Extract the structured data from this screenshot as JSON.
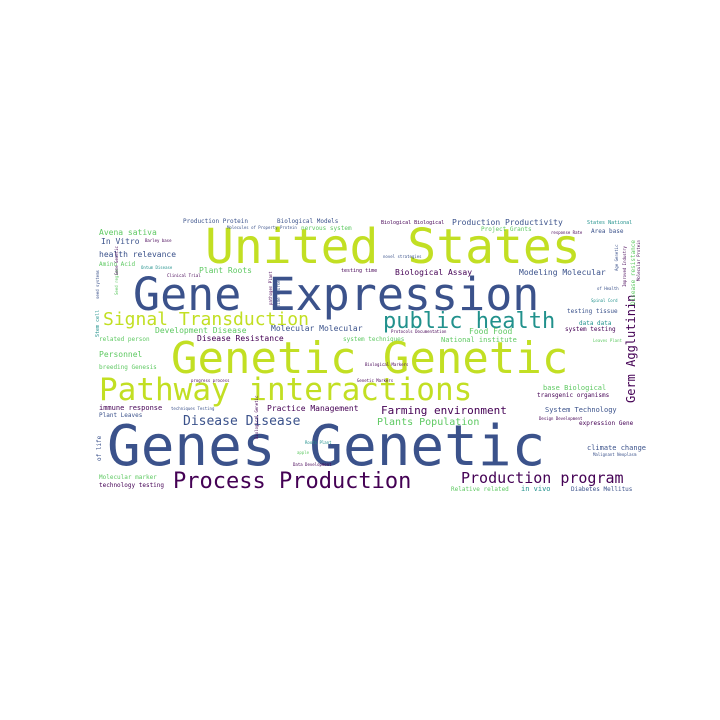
{
  "palette": {
    "dark_purple": "#440154",
    "indigo": "#3b528b",
    "teal": "#21918c",
    "green": "#5ec962",
    "yellow_green": "#c2df23"
  },
  "words": {
    "united_states": "United States",
    "gene_expression": "Gene Expression",
    "signal_transduction": "Signal Transduction",
    "public_health": "public health",
    "genetic_genetic": "Genetic Genetic",
    "pathway_interactions": "Pathway interactions",
    "genes_genetic": "Genes Genetic",
    "process_production": "Process Production",
    "production_program": "Production program",
    "disease_disease": "Disease Disease",
    "farming_environment": "Farming environment",
    "plants_population": "Plants Population",
    "germ_agglutinin": "Germ Agglutinin",
    "production_productivity": "Production Productivity",
    "biological_assay": "Biological Assay",
    "modeling_molecular": "Modeling Molecular",
    "avena_sativa": "Avena sativa",
    "in_vitro": "In Vitro",
    "health_relevance": "health relevance",
    "personnel": "Personnel",
    "disease_resistance": "Disease Resistance",
    "molecular_molecular": "Molecular Molecular",
    "development_disease": "Development Disease",
    "plant_roots": "Plant Roots",
    "food_food": "Food Food",
    "practice_management": "Practice Management",
    "system_technology": "System Technology",
    "base_biological": "base Biological",
    "immune_response": "immune response",
    "national_institute": "National institute",
    "climate_change": "climate change",
    "in_vivo": "in vivo",
    "diabetes_mellitus": "Diabetes Mellitus",
    "relative_related": "Relative related",
    "technology_testing": "technology testing",
    "molecular_marker": "Molecular marker",
    "plant_leaves": "Plant Leaves",
    "breeding_genesis": "breeding Genesis",
    "related_person": "related person",
    "amino_acid": "Amino Acid",
    "production_protein": "Production Protein",
    "biological_models": "Biological Models",
    "nervous_system": "nervous system",
    "biological_biological": "Biological Biological",
    "project_grants": "Project Grants",
    "states_national": "States National",
    "area_base": "Area base",
    "response_rate": "response Rate",
    "testing_time": "testing time",
    "novel_strategies": "novel strategies",
    "barley_base": "Barley base",
    "ontum_disease": "Ontum Disease",
    "clinical_trial": "Clinical Trial",
    "biological_markers": "Biological Markers",
    "testing_tissue": "testing tissue",
    "system_testing": "system testing",
    "system_techniques": "system techniques",
    "data_data": "data data",
    "expression_gene": "expression Gene",
    "transgenic_organisms": "transgenic organisms",
    "malignant_neoplasm": "Malignant Neoplasm",
    "data_development": "Data Development",
    "roots_plant": "Roots Plant",
    "apple": "apple",
    "design_development": "Design Development",
    "of_life": "of life",
    "improved_industry": "Improved Industry",
    "stem_cell": "Stem cell",
    "disease_resistance_v": "Disease resistance",
    "spinal_cord": "Spinal Cord",
    "leaves_plant": "Leaves Plant",
    "of_health": "of Health",
    "genetic_markers": "Genetic Markers",
    "biological_genetic": "Biological Genetic",
    "protocols_documentation": "Protocols Documentation",
    "progress_process": "progress process",
    "techniques_testing": "techniques Testing",
    "age_genetic": "Age Genetic",
    "molecular_protein": "Molecular Protein",
    "pathogen_plant": "pathogen Plant",
    "time_course": "Time Course",
    "seed_region": "Seed region",
    "seed_systems": "seed systems",
    "molecules_of_property": "Molecules of Property Protein",
    "gene_genetic": "Gene Genetic"
  }
}
